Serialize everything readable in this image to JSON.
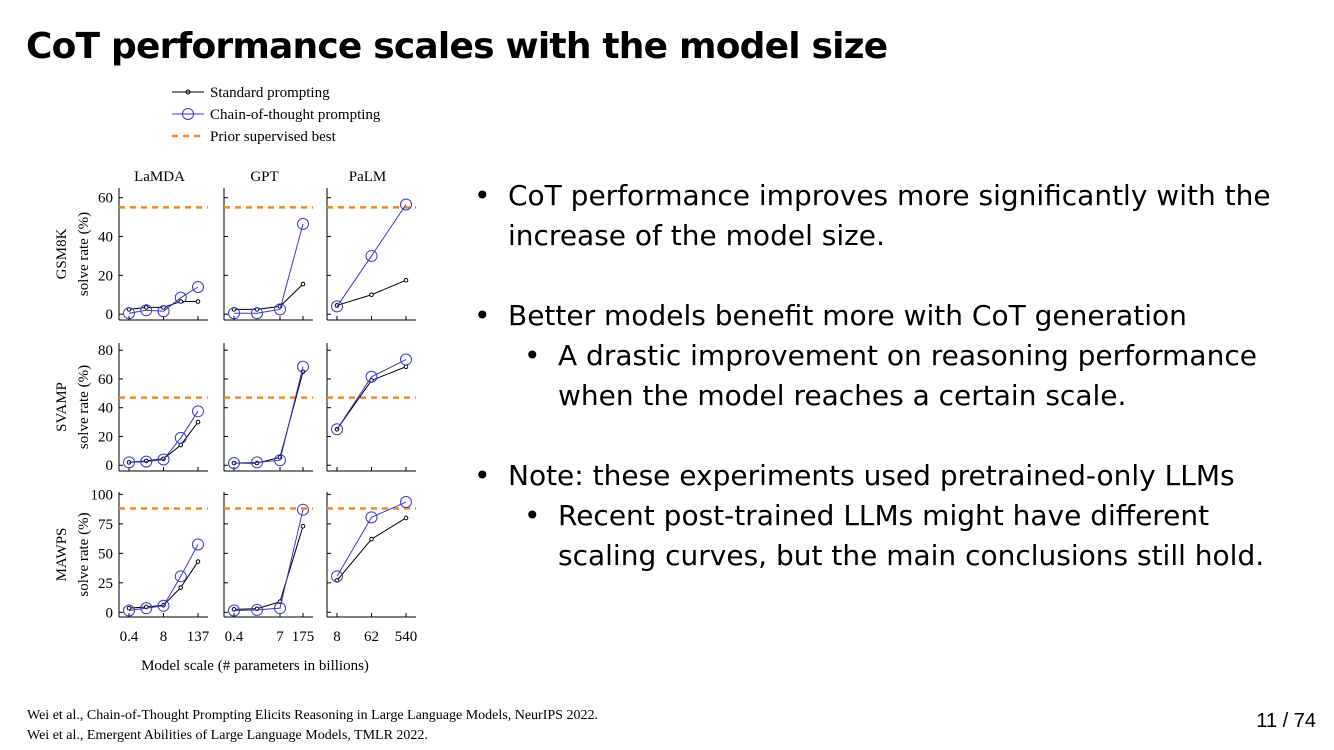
{
  "slide": {
    "title": "CoT performance scales with the model size",
    "bullets": [
      {
        "text": "CoT performance improves more significantly with the increase of the model size.",
        "subs": []
      },
      {
        "text": "Better models benefit more with CoT generation",
        "subs": [
          "A drastic improvement on reasoning performance when the model reaches a certain scale."
        ]
      },
      {
        "text": "Note: these experiments used pretrained-only LLMs",
        "subs": [
          "Recent post-trained LLMs might have different scaling curves, but the main conclusions still hold."
        ]
      }
    ],
    "references": [
      "Wei et al., Chain-of-Thought Prompting Elicits Reasoning in Large Language Models, NeurIPS 2022.",
      "Wei et al., Emergent Abilities of Large Language Models, TMLR 2022."
    ],
    "page_number": "11 / 74"
  },
  "colors": {
    "standard": "#000000",
    "cot": "#3a3ac8",
    "prior_best": "#f08a2c",
    "axis": "#000000",
    "text": "#000000"
  },
  "chart_data": {
    "type": "line",
    "title": "",
    "xlabel": "Model scale (# parameters in billions)",
    "legend": [
      {
        "key": "standard",
        "label": "Standard prompting"
      },
      {
        "key": "cot",
        "label": "Chain-of-thought prompting"
      },
      {
        "key": "prior",
        "label": "Prior supervised best"
      }
    ],
    "columns": [
      {
        "name": "LaMDA",
        "x": [
          0.4,
          2,
          8,
          68,
          137
        ],
        "xticks": [
          "0.4",
          "8",
          "137"
        ],
        "xtick_positions": [
          0,
          2,
          4
        ]
      },
      {
        "name": "GPT",
        "x": [
          0.4,
          1.3,
          7,
          175
        ],
        "xticks": [
          "0.4",
          "7",
          "175"
        ],
        "xtick_positions": [
          0,
          2,
          3
        ]
      },
      {
        "name": "PaLM",
        "x": [
          8,
          62,
          540
        ],
        "xticks": [
          "8",
          "62",
          "540"
        ],
        "xtick_positions": [
          0,
          1,
          2
        ]
      }
    ],
    "rows": [
      {
        "dataset": "GSM8K",
        "ylabel": "solve rate (%)",
        "ylim": [
          -3,
          65
        ],
        "yticks": [
          0,
          20,
          40,
          60
        ],
        "prior_best": 55,
        "series": [
          {
            "key": "standard",
            "values": [
              [
                2.5,
                3.5,
                3.5,
                6.5,
                6.5
              ],
              [
                2.5,
                2.5,
                4,
                15.5
              ],
              [
                4.5,
                10,
                17.5
              ]
            ]
          },
          {
            "key": "cot",
            "values": [
              [
                0.5,
                2,
                1.5,
                8.5,
                14
              ],
              [
                0.5,
                0.5,
                2.5,
                46.5
              ],
              [
                4,
                30,
                56.5
              ]
            ]
          }
        ]
      },
      {
        "dataset": "SVAMP",
        "ylabel": "solve rate (%)",
        "ylim": [
          -4,
          85
        ],
        "yticks": [
          0,
          20,
          40,
          60,
          80
        ],
        "prior_best": 47,
        "series": [
          {
            "key": "standard",
            "values": [
              [
                2,
                3,
                4.5,
                14,
                30
              ],
              [
                1.5,
                1.5,
                5.5,
                65
              ],
              [
                25,
                59,
                68.5
              ]
            ]
          },
          {
            "key": "cot",
            "values": [
              [
                2,
                2.5,
                4,
                19,
                37.5
              ],
              [
                1.5,
                2,
                3.5,
                68.5
              ],
              [
                25,
                61.5,
                73.5
              ]
            ]
          }
        ]
      },
      {
        "dataset": "MAWPS",
        "ylabel": "solve rate (%)",
        "ylim": [
          -4,
          102
        ],
        "yticks": [
          0,
          25,
          50,
          75,
          100
        ],
        "prior_best": 88,
        "series": [
          {
            "key": "standard",
            "values": [
              [
                3.5,
                4.5,
                6,
                21,
                43
              ],
              [
                2.5,
                3,
                9,
                73
              ],
              [
                27,
                62,
                80
              ]
            ]
          },
          {
            "key": "cot",
            "values": [
              [
                1.5,
                3.5,
                5.5,
                30.5,
                57.5
              ],
              [
                1.5,
                2,
                3.5,
                87
              ],
              [
                30.5,
                80.5,
                93.5
              ]
            ]
          }
        ]
      }
    ]
  }
}
